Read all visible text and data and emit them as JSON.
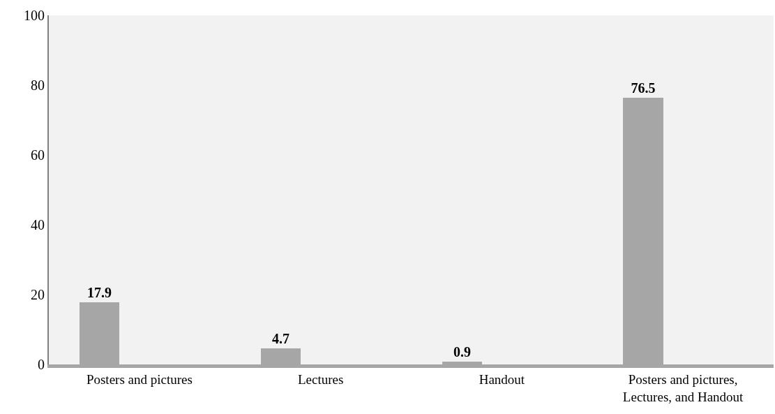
{
  "chart_data": {
    "type": "bar",
    "categories": [
      "Posters and pictures",
      "Lectures",
      "Handout",
      "Posters and pictures,\nLectures, and Handout"
    ],
    "values": [
      17.9,
      4.7,
      0.9,
      76.5
    ],
    "color": "#a6a6a6",
    "ylim": [
      0,
      100
    ],
    "yticks": [
      0,
      20,
      40,
      60,
      80,
      100
    ],
    "data_labels": true,
    "grid": false,
    "legend": false
  }
}
